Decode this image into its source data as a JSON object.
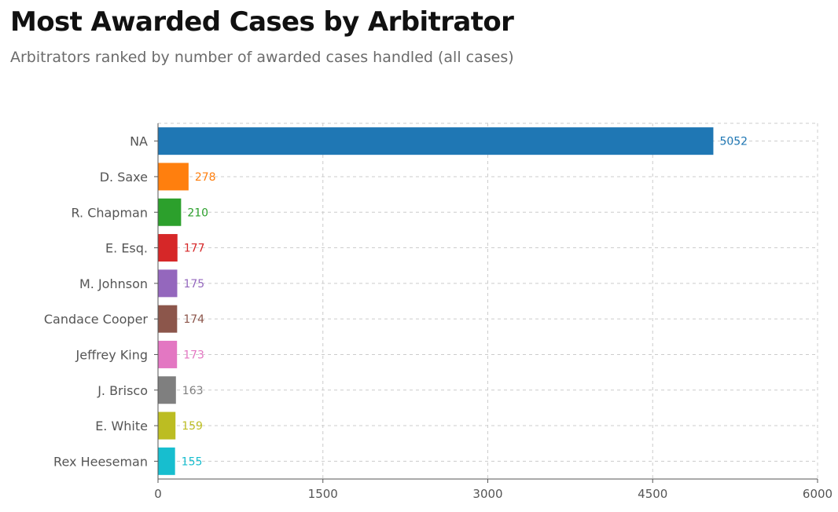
{
  "chart_data": {
    "type": "bar",
    "orientation": "horizontal",
    "title": "Most Awarded Cases by Arbitrator",
    "subtitle": "Arbitrators ranked by number of awarded cases handled (all cases)",
    "categories": [
      "NA",
      "D. Saxe",
      "R. Chapman",
      "E. Esq.",
      "M. Johnson",
      "Candace Cooper",
      "Jeffrey King",
      "J. Brisco",
      "E. White",
      "Rex Heeseman"
    ],
    "values": [
      5052,
      278,
      210,
      177,
      175,
      174,
      173,
      163,
      159,
      155
    ],
    "colors": [
      "#1f77b4",
      "#ff7f0e",
      "#2ca02c",
      "#d62728",
      "#9467bd",
      "#8c564b",
      "#e377c2",
      "#7f7f7f",
      "#bcbd22",
      "#17becf"
    ],
    "xlim": [
      0,
      6000
    ],
    "xticks": [
      0,
      1500,
      3000,
      4500,
      6000
    ],
    "xlabel": "",
    "ylabel": "",
    "grid": true,
    "data_labels": true
  }
}
